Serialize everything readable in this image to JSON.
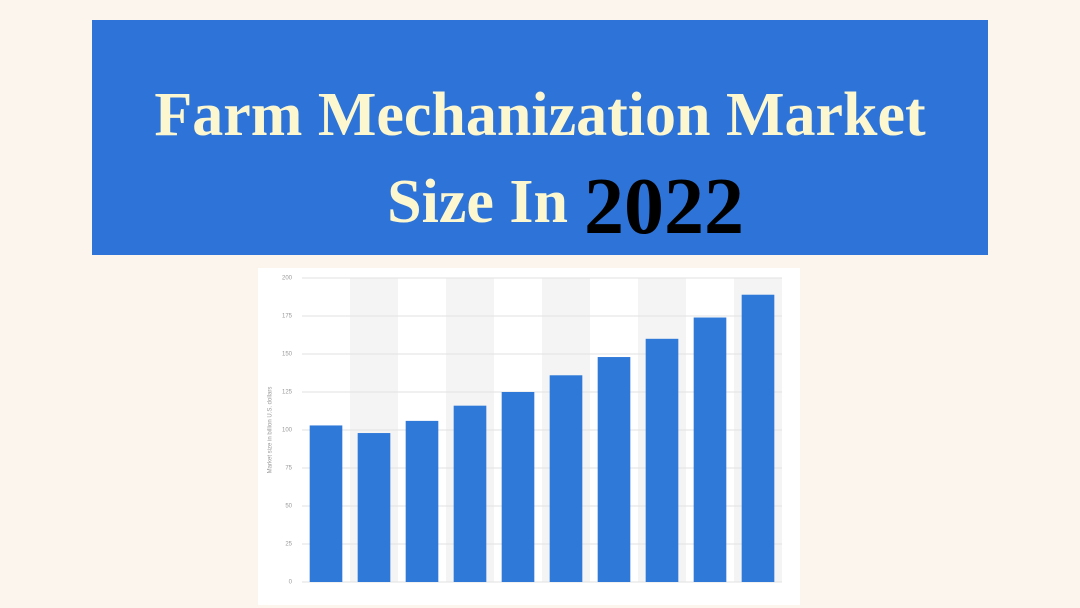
{
  "chart_data": {
    "type": "bar",
    "title": {
      "line1": "Farm Mechanization Market",
      "line2": "Size In",
      "year": "2022"
    },
    "y_label": "Market size in billion U.S. dollars",
    "categories": [
      null,
      null,
      null,
      null,
      null,
      null,
      null,
      null,
      null,
      null
    ],
    "values": [
      103,
      98,
      106,
      116,
      125,
      136,
      148,
      160,
      174,
      189
    ],
    "color": "#2f7ad8",
    "ylim": [
      0,
      200
    ],
    "yticks": [
      0,
      25,
      50,
      75,
      100,
      125,
      150,
      175,
      200
    ],
    "grid": true
  }
}
